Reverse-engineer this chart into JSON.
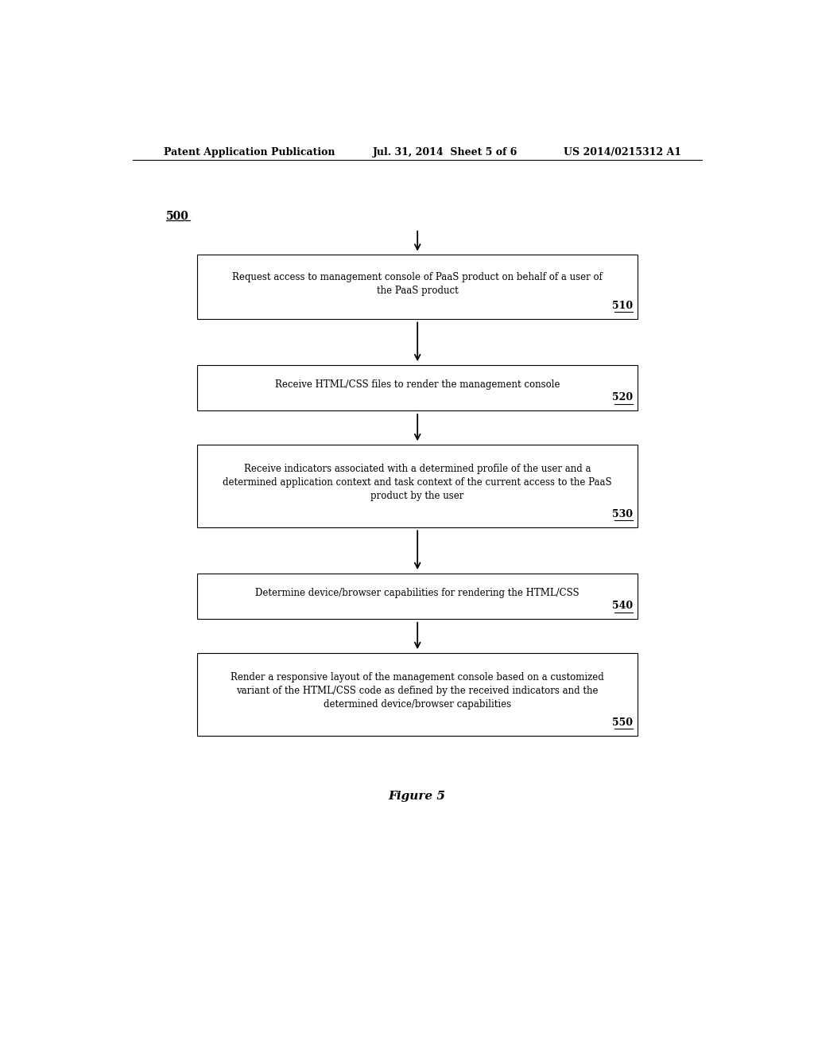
{
  "header_left": "Patent Application Publication",
  "header_mid": "Jul. 31, 2014  Sheet 5 of 6",
  "header_right": "US 2014/0215312 A1",
  "figure_label": "Figure 5",
  "start_label": "500",
  "boxes": [
    {
      "id": "510",
      "text": "Request access to management console of PaaS product on behalf of a user of\nthe PaaS product",
      "label": "510"
    },
    {
      "id": "520",
      "text": "Receive HTML/CSS files to render the management console",
      "label": "520"
    },
    {
      "id": "530",
      "text": "Receive indicators associated with a determined profile of the user and a\ndetermined application context and task context of the current access to the PaaS\nproduct by the user",
      "label": "530"
    },
    {
      "id": "540",
      "text": "Determine device/browser capabilities for rendering the HTML/CSS",
      "label": "540"
    },
    {
      "id": "550",
      "text": "Render a responsive layout of the management console based on a customized\nvariant of the HTML/CSS code as defined by the received indicators and the\ndetermined device/browser capabilities",
      "label": "550"
    }
  ],
  "bg_color": "#ffffff",
  "box_edge_color": "#000000",
  "text_color": "#000000",
  "arrow_color": "#000000"
}
